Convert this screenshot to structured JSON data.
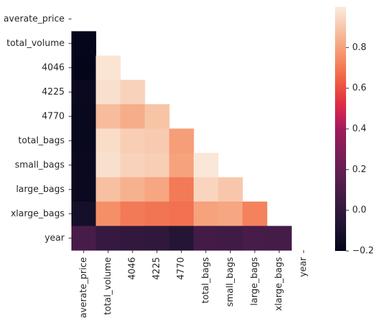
{
  "chart_data": {
    "type": "heatmap",
    "title": "",
    "xlabel": "",
    "ylabel": "",
    "mask": "upper-triangle-including-diagonal",
    "colormap": "rocket",
    "vmin": -0.2,
    "vmax": 1.0,
    "labels": [
      "averate_price",
      "total_volume",
      "4046",
      "4225",
      "4770",
      "total_bags",
      "small_bags",
      "large_bags",
      "xlarge_bags",
      "year"
    ],
    "matrix": [
      [
        1.0,
        null,
        null,
        null,
        null,
        null,
        null,
        null,
        null,
        null
      ],
      [
        -0.19,
        1.0,
        null,
        null,
        null,
        null,
        null,
        null,
        null,
        null
      ],
      [
        -0.21,
        0.98,
        1.0,
        null,
        null,
        null,
        null,
        null,
        null,
        null
      ],
      [
        -0.17,
        0.97,
        0.93,
        1.0,
        null,
        null,
        null,
        null,
        null,
        null
      ],
      [
        -0.18,
        0.87,
        0.83,
        0.89,
        1.0,
        null,
        null,
        null,
        null,
        null
      ],
      [
        -0.18,
        0.96,
        0.92,
        0.91,
        0.79,
        1.0,
        null,
        null,
        null,
        null
      ],
      [
        -0.17,
        0.97,
        0.93,
        0.92,
        0.8,
        0.99,
        1.0,
        null,
        null,
        null
      ],
      [
        -0.17,
        0.88,
        0.84,
        0.81,
        0.7,
        0.94,
        0.9,
        1.0,
        null,
        null
      ],
      [
        -0.12,
        0.75,
        0.7,
        0.69,
        0.68,
        0.8,
        0.81,
        0.72,
        1.0,
        null
      ],
      [
        0.09,
        0.02,
        0.0,
        -0.01,
        -0.06,
        0.07,
        0.06,
        0.09,
        0.08,
        1.0
      ]
    ],
    "colorbar": {
      "ticks": [
        -0.2,
        0.0,
        0.2,
        0.4,
        0.6,
        0.8
      ],
      "tick_labels": [
        "−0.2",
        "0.0",
        "0.2",
        "0.4",
        "0.6",
        "0.8"
      ]
    }
  }
}
